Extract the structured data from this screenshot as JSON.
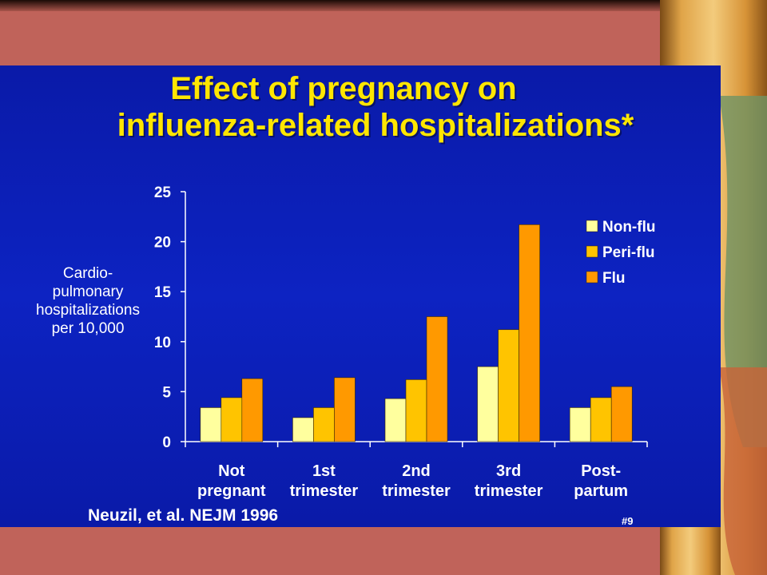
{
  "slide": {
    "title_line1": "Effect of pregnancy on",
    "title_line2": "influenza-related hospitalizations*",
    "citation": "Neuzil, et al.  NEJM 1996",
    "slide_number": "#9"
  },
  "colors": {
    "background": "#0d23c2",
    "title": "#ffe600",
    "non_flu": "#ffff9e",
    "peri_flu": "#ffc400",
    "flu": "#ff9900",
    "frame": "#c0635a"
  },
  "chart_data": {
    "type": "bar",
    "ylabel_lines": [
      "Cardio-",
      "pulmonary",
      "hospitalizations",
      "per 10,000"
    ],
    "ylim": [
      0,
      25
    ],
    "yticks": [
      0,
      5,
      10,
      15,
      20,
      25
    ],
    "categories": [
      [
        "Not",
        "pregnant"
      ],
      [
        "1st",
        "trimester"
      ],
      [
        "2nd",
        "trimester"
      ],
      [
        "3rd",
        "trimester"
      ],
      [
        "Post-",
        "partum"
      ]
    ],
    "series": [
      {
        "name": "Non-flu",
        "color": "#ffff9e",
        "values": [
          3.4,
          2.4,
          4.3,
          7.5,
          3.4
        ]
      },
      {
        "name": "Peri-flu",
        "color": "#ffc400",
        "values": [
          4.4,
          3.4,
          6.2,
          11.2,
          4.4
        ]
      },
      {
        "name": "Flu",
        "color": "#ff9900",
        "values": [
          6.3,
          6.4,
          12.5,
          21.7,
          5.5
        ]
      }
    ],
    "legend_position": "top-right",
    "grid": false
  }
}
